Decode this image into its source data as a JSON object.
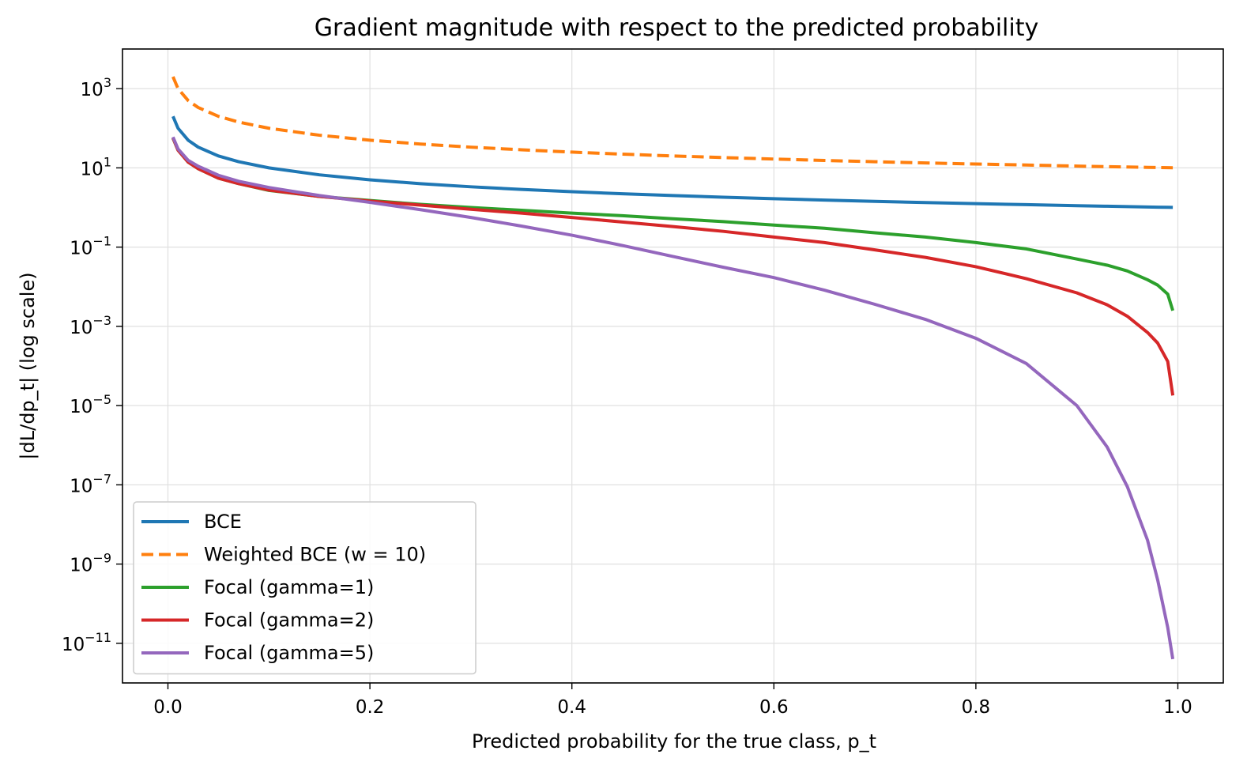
{
  "chart_data": {
    "type": "line",
    "title": "Gradient magnitude with respect to the predicted probability",
    "xlabel": "Predicted probability for the true class,  p_t",
    "ylabel": "|dL/dp_t|  (log scale)",
    "x_scale": "linear",
    "y_scale": "log",
    "xlim": [
      -0.045,
      1.045
    ],
    "ylim": [
      1e-12,
      10000.0
    ],
    "x_ticks": [
      {
        "value": 0.0,
        "label": "0.0"
      },
      {
        "value": 0.2,
        "label": "0.2"
      },
      {
        "value": 0.4,
        "label": "0.4"
      },
      {
        "value": 0.6,
        "label": "0.6"
      },
      {
        "value": 0.8,
        "label": "0.8"
      },
      {
        "value": 1.0,
        "label": "1.0"
      }
    ],
    "y_ticks": [
      {
        "value": 1000.0,
        "base": "10",
        "exp": "3"
      },
      {
        "value": 10.0,
        "base": "10",
        "exp": "1"
      },
      {
        "value": 0.1,
        "base": "10",
        "exp": "−1"
      },
      {
        "value": 0.001,
        "base": "10",
        "exp": "−3"
      },
      {
        "value": 1e-05,
        "base": "10",
        "exp": "−5"
      },
      {
        "value": 1e-07,
        "base": "10",
        "exp": "−7"
      },
      {
        "value": 1e-09,
        "base": "10",
        "exp": "−9"
      },
      {
        "value": 1e-11,
        "base": "10",
        "exp": "−11"
      }
    ],
    "grid": true,
    "legend_position": "lower-left",
    "x": [
      0.005,
      0.01,
      0.02,
      0.03,
      0.05,
      0.07,
      0.1,
      0.15,
      0.2,
      0.25,
      0.3,
      0.35,
      0.4,
      0.45,
      0.5,
      0.55,
      0.6,
      0.65,
      0.7,
      0.75,
      0.8,
      0.85,
      0.9,
      0.93,
      0.95,
      0.97,
      0.98,
      0.99,
      0.995
    ],
    "series": [
      {
        "name": "BCE",
        "color": "#1f77b4",
        "style": "solid",
        "values": [
          200,
          100,
          50,
          33.3,
          20,
          14.3,
          10,
          6.67,
          5,
          4,
          3.33,
          2.86,
          2.5,
          2.22,
          2,
          1.82,
          1.67,
          1.54,
          1.43,
          1.33,
          1.25,
          1.18,
          1.11,
          1.075,
          1.053,
          1.031,
          1.02,
          1.01,
          1.005
        ]
      },
      {
        "name": "Weighted BCE  (w = 10)",
        "color": "#ff7f0e",
        "style": "dashed",
        "values": [
          2000,
          1000,
          500,
          333,
          200,
          143,
          100,
          66.7,
          50,
          40,
          33.3,
          28.6,
          25,
          22.2,
          20,
          18.2,
          16.7,
          15.4,
          14.3,
          13.3,
          12.5,
          11.8,
          11.1,
          10.75,
          10.53,
          10.31,
          10.2,
          10.1,
          10.05
        ]
      },
      {
        "name": "Focal  (gamma=1)",
        "color": "#2ca02c",
        "style": "solid",
        "values": [
          56,
          28,
          14,
          9.5,
          5.5,
          4,
          2.7,
          1.9,
          1.5,
          1.2,
          1.0,
          0.85,
          0.72,
          0.62,
          0.52,
          0.44,
          0.36,
          0.3,
          0.23,
          0.18,
          0.13,
          0.09,
          0.05,
          0.035,
          0.025,
          0.015,
          0.011,
          0.0065,
          0.0025
        ]
      },
      {
        "name": "Focal  (gamma=2)",
        "color": "#d62728",
        "style": "solid",
        "values": [
          57,
          28,
          14,
          9.5,
          5.5,
          4,
          2.75,
          1.9,
          1.45,
          1.15,
          0.9,
          0.72,
          0.56,
          0.43,
          0.33,
          0.25,
          0.18,
          0.13,
          0.085,
          0.055,
          0.032,
          0.016,
          0.007,
          0.0035,
          0.0018,
          0.0007,
          0.00038,
          0.00013,
          1.8e-05
        ]
      },
      {
        "name": "Focal  (gamma=5)",
        "color": "#9467bd",
        "style": "solid",
        "values": [
          60,
          30,
          15.5,
          11,
          6.5,
          4.6,
          3.2,
          2.0,
          1.35,
          0.88,
          0.56,
          0.34,
          0.2,
          0.11,
          0.058,
          0.031,
          0.017,
          0.0082,
          0.0036,
          0.0015,
          0.0005,
          0.000115,
          1e-05,
          9e-07,
          9e-08,
          4e-09,
          4e-10,
          2.5e-11,
          4e-12
        ]
      }
    ]
  }
}
